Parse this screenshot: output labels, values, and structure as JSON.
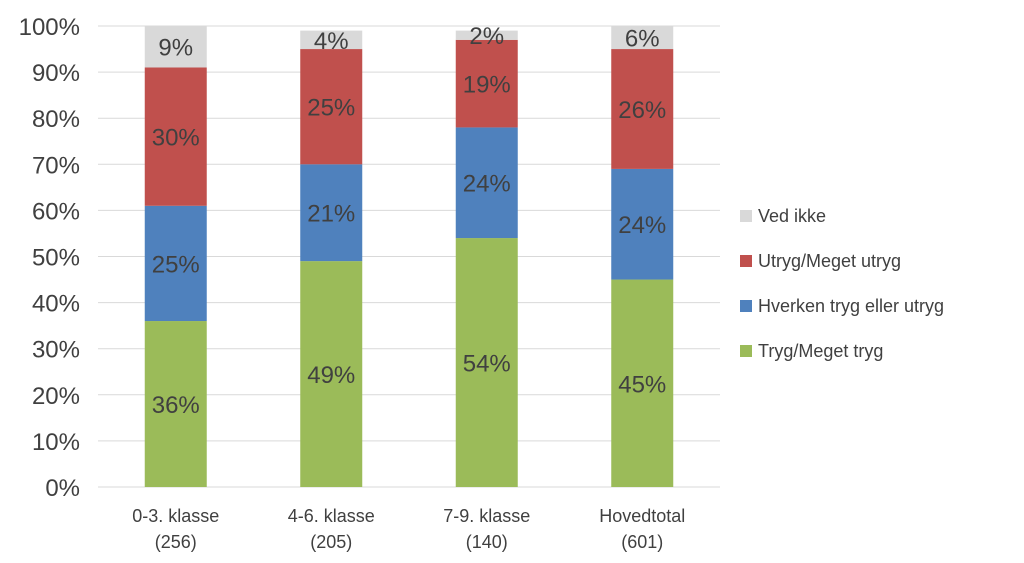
{
  "chart_data": {
    "type": "bar",
    "stacked": true,
    "percent_scale": true,
    "categories": [
      [
        "0-3. klasse",
        "(256)"
      ],
      [
        "4-6. klasse",
        "(205)"
      ],
      [
        "7-9. klasse",
        "(140)"
      ],
      [
        "Hovedtotal",
        "(601)"
      ]
    ],
    "series": [
      {
        "name": "Tryg/Meget tryg",
        "color": "#9bbb59",
        "values": [
          36,
          49,
          54,
          45
        ],
        "labels": [
          "36%",
          "49%",
          "54%",
          "45%"
        ]
      },
      {
        "name": "Hverken tryg eller utryg",
        "color": "#4f81bd",
        "values": [
          25,
          21,
          24,
          24
        ],
        "labels": [
          "25%",
          "21%",
          "24%",
          "24%"
        ]
      },
      {
        "name": "Utryg/Meget utryg",
        "color": "#c0504d",
        "values": [
          30,
          25,
          19,
          26
        ],
        "labels": [
          "30%",
          "25%",
          "19%",
          "26%"
        ]
      },
      {
        "name": "Ved ikke",
        "color": "#d9d9d9",
        "values": [
          9,
          4,
          2,
          6
        ],
        "labels": [
          "9%",
          "4%",
          "2%",
          "6%"
        ]
      }
    ],
    "yticks": [
      "0%",
      "10%",
      "20%",
      "30%",
      "40%",
      "50%",
      "60%",
      "70%",
      "80%",
      "90%",
      "100%"
    ],
    "ylim": [
      0,
      100
    ],
    "grid": true,
    "legend_position": "right",
    "title": "",
    "xlabel": "",
    "ylabel": ""
  }
}
